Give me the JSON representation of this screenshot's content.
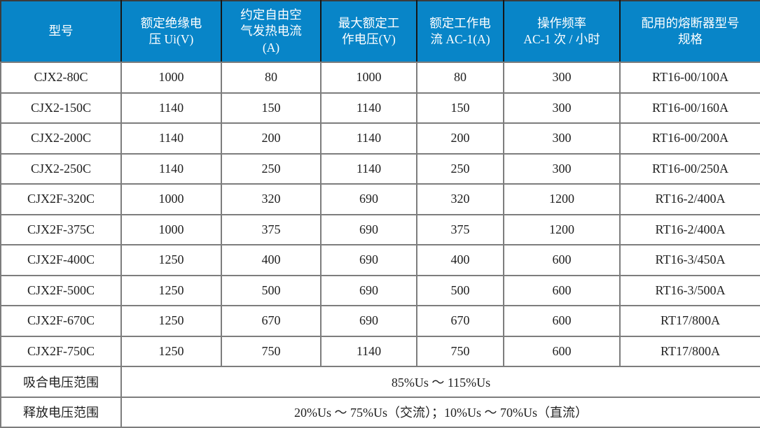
{
  "table": {
    "headers": [
      "型号",
      "额定绝缘电\n压 Ui(V)",
      "约定自由空\n气发热电流\n(A)",
      "最大额定工\n作电压(V)",
      "额定工作电\n流 AC-1(A)",
      "操作频率\nAC-1 次 / 小时",
      "配用的熔断器型号\n规格"
    ],
    "rows": [
      [
        "CJX2-80C",
        "1000",
        "80",
        "1000",
        "80",
        "300",
        "RT16-00/100A"
      ],
      [
        "CJX2-150C",
        "1140",
        "150",
        "1140",
        "150",
        "300",
        "RT16-00/160A"
      ],
      [
        "CJX2-200C",
        "1140",
        "200",
        "1140",
        "200",
        "300",
        "RT16-00/200A"
      ],
      [
        "CJX2-250C",
        "1140",
        "250",
        "1140",
        "250",
        "300",
        "RT16-00/250A"
      ],
      [
        "CJX2F-320C",
        "1000",
        "320",
        "690",
        "320",
        "1200",
        "RT16-2/400A"
      ],
      [
        "CJX2F-375C",
        "1000",
        "375",
        "690",
        "375",
        "1200",
        "RT16-2/400A"
      ],
      [
        "CJX2F-400C",
        "1250",
        "400",
        "690",
        "400",
        "600",
        "RT16-3/450A"
      ],
      [
        "CJX2F-500C",
        "1250",
        "500",
        "690",
        "500",
        "600",
        "RT16-3/500A"
      ],
      [
        "CJX2F-670C",
        "1250",
        "670",
        "690",
        "670",
        "600",
        "RT17/800A"
      ],
      [
        "CJX2F-750C",
        "1250",
        "750",
        "1140",
        "750",
        "600",
        "RT17/800A"
      ]
    ],
    "footer_rows": [
      {
        "label": "吸合电压范围",
        "value": "85%Us ～ 115%Us"
      },
      {
        "label": "释放电压范围",
        "value": "20%Us ～ 75%Us（交流）；10%Us ～ 70%Us（直流）"
      }
    ],
    "colors": {
      "header_bg": "#0885c8",
      "header_text": "#ffffff",
      "inner_border": "#7d7d7d",
      "outer_border": "#3b3b3b",
      "body_text": "#1f1f1f"
    }
  }
}
